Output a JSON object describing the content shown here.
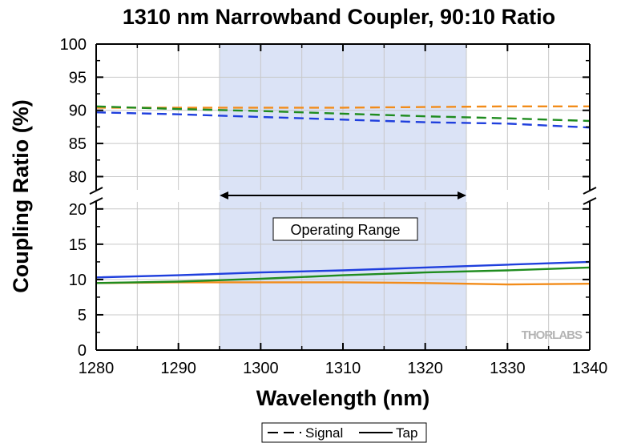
{
  "chart_data": {
    "type": "line",
    "title": "1310 nm Narrowband Coupler, 90:10 Ratio",
    "xlabel": "Wavelength (nm)",
    "ylabel": "Coupling Ratio (%)",
    "xlim": [
      1280,
      1340
    ],
    "x_ticks": [
      "1280",
      "1290",
      "1300",
      "1310",
      "1320",
      "1330",
      "1340"
    ],
    "y_axis_break": true,
    "ylim_upper": [
      78,
      100
    ],
    "ylim_lower": [
      0,
      21
    ],
    "y_ticks_upper": [
      "80",
      "85",
      "90",
      "95",
      "100"
    ],
    "y_ticks_lower": [
      "0",
      "5",
      "10",
      "15",
      "20"
    ],
    "grid": true,
    "operating_range": {
      "label": "Operating Range",
      "x": [
        1295,
        1325
      ],
      "color": "#dbe3f6"
    },
    "legend": {
      "position": "bottom",
      "entries": [
        {
          "label": "Signal",
          "style": "dashed"
        },
        {
          "label": "Tap",
          "style": "solid"
        }
      ]
    },
    "watermark": "THORLABS",
    "series": [
      {
        "kind": "Signal",
        "style": "dashed",
        "color": "#f28c1a",
        "x": [
          1280,
          1290,
          1300,
          1310,
          1320,
          1330,
          1340
        ],
        "values": [
          90.4,
          90.4,
          90.4,
          90.4,
          90.5,
          90.6,
          90.6
        ]
      },
      {
        "kind": "Signal",
        "style": "dashed",
        "color": "#1f8c1f",
        "x": [
          1280,
          1290,
          1300,
          1310,
          1320,
          1330,
          1340
        ],
        "values": [
          90.6,
          90.2,
          89.9,
          89.5,
          89.1,
          88.8,
          88.4
        ]
      },
      {
        "kind": "Signal",
        "style": "dashed",
        "color": "#1f3fdd",
        "x": [
          1280,
          1290,
          1300,
          1310,
          1320,
          1330,
          1340
        ],
        "values": [
          89.7,
          89.4,
          89.0,
          88.6,
          88.2,
          88.0,
          87.4
        ]
      },
      {
        "kind": "Tap",
        "style": "solid",
        "color": "#f28c1a",
        "x": [
          1280,
          1290,
          1300,
          1310,
          1320,
          1330,
          1340
        ],
        "values": [
          9.5,
          9.6,
          9.6,
          9.6,
          9.5,
          9.3,
          9.4
        ]
      },
      {
        "kind": "Tap",
        "style": "solid",
        "color": "#1f8c1f",
        "x": [
          1280,
          1290,
          1300,
          1310,
          1320,
          1330,
          1340
        ],
        "values": [
          9.5,
          9.7,
          10.1,
          10.6,
          11.0,
          11.3,
          11.7
        ]
      },
      {
        "kind": "Tap",
        "style": "solid",
        "color": "#1f3fdd",
        "x": [
          1280,
          1290,
          1300,
          1310,
          1320,
          1330,
          1340
        ],
        "values": [
          10.3,
          10.6,
          11.0,
          11.3,
          11.7,
          12.1,
          12.5
        ]
      }
    ]
  }
}
